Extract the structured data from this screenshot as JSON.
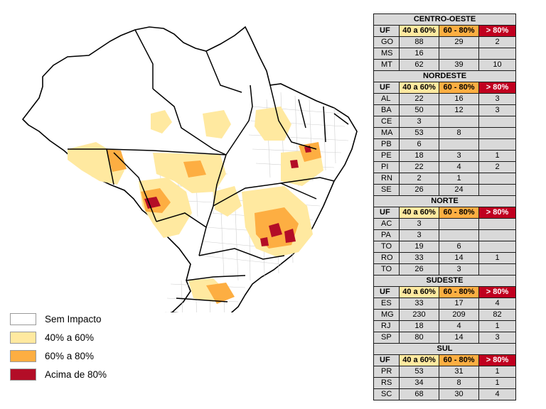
{
  "colors": {
    "none": "#ffffff",
    "low": "#ffe9a0",
    "mid": "#fdae42",
    "high": "#b30d27",
    "table_bg": "#d9d9d9",
    "state_border": "#000000"
  },
  "legend": [
    {
      "label": "Sem Impacto",
      "color": "#ffffff"
    },
    {
      "label": "40% a 60%",
      "color": "#ffe9a0"
    },
    {
      "label": "60% a 80%",
      "color": "#fdae42"
    },
    {
      "label": "Acima de 80%",
      "color": "#b30d27"
    }
  ],
  "table": {
    "header": {
      "uf": "UF",
      "c1": "40 a 60%",
      "c2": "60 - 80%",
      "c3": "> 80%"
    },
    "regions": [
      {
        "name": "CENTRO-OESTE",
        "rows": [
          {
            "uf": "GO",
            "c1": "88",
            "c2": "29",
            "c3": "2"
          },
          {
            "uf": "MS",
            "c1": "16",
            "c2": "",
            "c3": ""
          },
          {
            "uf": "MT",
            "c1": "62",
            "c2": "39",
            "c3": "10"
          }
        ]
      },
      {
        "name": "NORDESTE",
        "rows": [
          {
            "uf": "AL",
            "c1": "22",
            "c2": "16",
            "c3": "3"
          },
          {
            "uf": "BA",
            "c1": "50",
            "c2": "12",
            "c3": "3"
          },
          {
            "uf": "CE",
            "c1": "3",
            "c2": "",
            "c3": ""
          },
          {
            "uf": "MA",
            "c1": "53",
            "c2": "8",
            "c3": ""
          },
          {
            "uf": "PB",
            "c1": "6",
            "c2": "",
            "c3": ""
          },
          {
            "uf": "PE",
            "c1": "18",
            "c2": "3",
            "c3": "1"
          },
          {
            "uf": "PI",
            "c1": "22",
            "c2": "4",
            "c3": "2"
          },
          {
            "uf": "RN",
            "c1": "2",
            "c2": "1",
            "c3": ""
          },
          {
            "uf": "SE",
            "c1": "26",
            "c2": "24",
            "c3": ""
          }
        ]
      },
      {
        "name": "NORTE",
        "rows": [
          {
            "uf": "AC",
            "c1": "3",
            "c2": "",
            "c3": ""
          },
          {
            "uf": "PA",
            "c1": "3",
            "c2": "",
            "c3": ""
          },
          {
            "uf": "TO",
            "c1": "19",
            "c2": "6",
            "c3": ""
          },
          {
            "uf": "RO",
            "c1": "33",
            "c2": "14",
            "c3": "1"
          },
          {
            "uf": "TO",
            "c1": "26",
            "c2": "3",
            "c3": ""
          }
        ]
      },
      {
        "name": "SUDESTE",
        "rows": [
          {
            "uf": "ES",
            "c1": "33",
            "c2": "17",
            "c3": "4"
          },
          {
            "uf": "MG",
            "c1": "230",
            "c2": "209",
            "c3": "82"
          },
          {
            "uf": "RJ",
            "c1": "18",
            "c2": "4",
            "c3": "1"
          },
          {
            "uf": "SP",
            "c1": "80",
            "c2": "14",
            "c3": "3"
          }
        ]
      },
      {
        "name": "SUL",
        "rows": [
          {
            "uf": "PR",
            "c1": "53",
            "c2": "31",
            "c3": "1"
          },
          {
            "uf": "RS",
            "c1": "34",
            "c2": "8",
            "c3": "1"
          },
          {
            "uf": "SC",
            "c1": "68",
            "c2": "30",
            "c3": "4"
          }
        ]
      }
    ]
  }
}
